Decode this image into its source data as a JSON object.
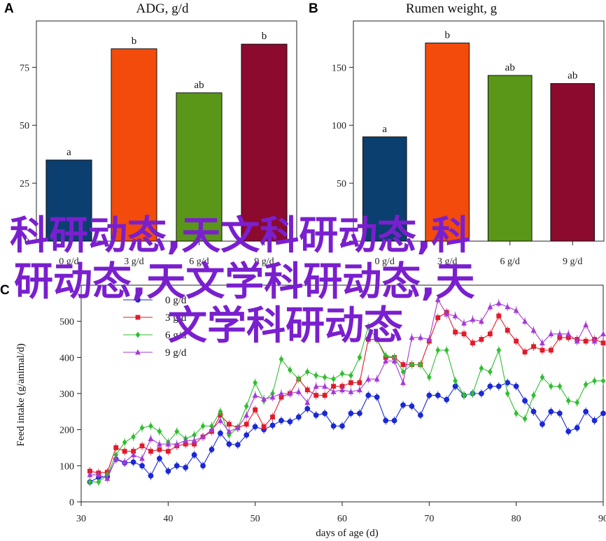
{
  "panels": {
    "A": {
      "letter": "A"
    },
    "B": {
      "letter": "B"
    },
    "C": {
      "letter": "C"
    }
  },
  "watermark": {
    "line1": "科研动态,天文科研动态,科",
    "line2": "研动态,天文学科研动态,天",
    "line3": "文学科研动态"
  },
  "colors": {
    "bar_0": "#0b3f70",
    "bar_3": "#f24b0c",
    "bar_6": "#5a9618",
    "bar_9": "#8b0a2e",
    "line_0": "#1a28d6",
    "line_3": "#e01b2a",
    "line_6": "#2fbf2f",
    "line_9": "#a43ad6",
    "watermark": "#7a1fcf"
  },
  "chart_data": [
    {
      "type": "bar",
      "panel": "A",
      "title": "ADG, g/d",
      "categories": [
        "0 g/d",
        "3 g/d",
        "6 g/d",
        "9 g/d"
      ],
      "values": [
        35,
        83,
        64,
        85
      ],
      "significance": [
        "a",
        "b",
        "ab",
        "b"
      ],
      "ylim": [
        0,
        95
      ],
      "yticks": [
        0,
        25,
        50,
        75
      ],
      "grid": false
    },
    {
      "type": "bar",
      "panel": "B",
      "title": "Rumen weight, g",
      "categories": [
        "0 g/d",
        "3 g/d",
        "6 g/d",
        "9 g/d"
      ],
      "values": [
        90,
        171,
        143,
        136
      ],
      "significance": [
        "a",
        "b",
        "ab",
        "ab"
      ],
      "ylim": [
        0,
        190
      ],
      "yticks": [
        0,
        50,
        100,
        150
      ],
      "grid": false
    },
    {
      "type": "line",
      "panel": "C",
      "xlabel": "days of age (d)",
      "ylabel": "Feed intake (g/animal/d)",
      "xlim": [
        30,
        90
      ],
      "ylim": [
        0,
        600
      ],
      "xticks": [
        30,
        40,
        50,
        60,
        70,
        80,
        90
      ],
      "yticks": [
        0,
        100,
        200,
        300,
        400,
        500
      ],
      "legend_position": "top-left",
      "x": [
        31,
        32,
        33,
        34,
        35,
        36,
        37,
        38,
        39,
        40,
        41,
        42,
        43,
        44,
        45,
        46,
        47,
        48,
        49,
        50,
        51,
        52,
        53,
        54,
        55,
        56,
        57,
        58,
        59,
        60,
        61,
        62,
        63,
        64,
        65,
        66,
        67,
        68,
        69,
        70,
        71,
        72,
        73,
        74,
        75,
        76,
        77,
        78,
        79,
        80,
        81,
        82,
        83,
        84,
        85,
        86,
        87,
        88,
        89,
        90
      ],
      "series": [
        {
          "name": "0 g/d",
          "marker": "circle",
          "values": [
            55,
            68,
            70,
            118,
            108,
            110,
            100,
            72,
            120,
            85,
            100,
            95,
            130,
            100,
            145,
            190,
            160,
            158,
            185,
            208,
            200,
            212,
            225,
            222,
            235,
            258,
            240,
            245,
            210,
            210,
            245,
            245,
            295,
            290,
            225,
            225,
            268,
            265,
            240,
            295,
            295,
            283,
            320,
            295,
            300,
            300,
            320,
            320,
            330,
            320,
            280,
            250,
            215,
            250,
            245,
            195,
            205,
            250,
            225,
            245
          ]
        },
        {
          "name": "3 g/d",
          "marker": "square",
          "values": [
            85,
            80,
            82,
            150,
            140,
            140,
            155,
            140,
            145,
            140,
            155,
            160,
            160,
            180,
            195,
            240,
            215,
            205,
            215,
            255,
            208,
            235,
            290,
            300,
            340,
            310,
            295,
            295,
            320,
            320,
            330,
            330,
            450,
            450,
            400,
            400,
            380,
            380,
            380,
            445,
            510,
            525,
            470,
            465,
            440,
            450,
            465,
            515,
            475,
            445,
            415,
            430,
            420,
            420,
            455,
            455,
            450,
            445,
            450,
            440
          ]
        },
        {
          "name": "6 g/d",
          "marker": "diamond",
          "values": [
            55,
            55,
            75,
            130,
            165,
            180,
            205,
            210,
            195,
            165,
            195,
            175,
            185,
            210,
            210,
            250,
            185,
            205,
            265,
            330,
            280,
            300,
            395,
            365,
            340,
            360,
            350,
            345,
            340,
            355,
            350,
            400,
            485,
            450,
            405,
            400,
            360,
            380,
            380,
            345,
            420,
            420,
            335,
            295,
            300,
            370,
            360,
            420,
            300,
            245,
            230,
            295,
            345,
            320,
            320,
            280,
            275,
            325,
            335,
            335
          ]
        },
        {
          "name": "9 g/d",
          "marker": "triangle",
          "values": [
            75,
            75,
            65,
            120,
            110,
            130,
            120,
            175,
            160,
            160,
            160,
            170,
            170,
            180,
            200,
            225,
            195,
            205,
            240,
            295,
            285,
            290,
            300,
            300,
            305,
            275,
            320,
            320,
            305,
            310,
            305,
            310,
            340,
            340,
            390,
            390,
            330,
            455,
            455,
            450,
            560,
            520,
            515,
            495,
            505,
            500,
            540,
            550,
            540,
            530,
            500,
            475,
            440,
            465,
            465,
            465,
            445,
            490,
            445,
            465
          ]
        }
      ]
    }
  ]
}
